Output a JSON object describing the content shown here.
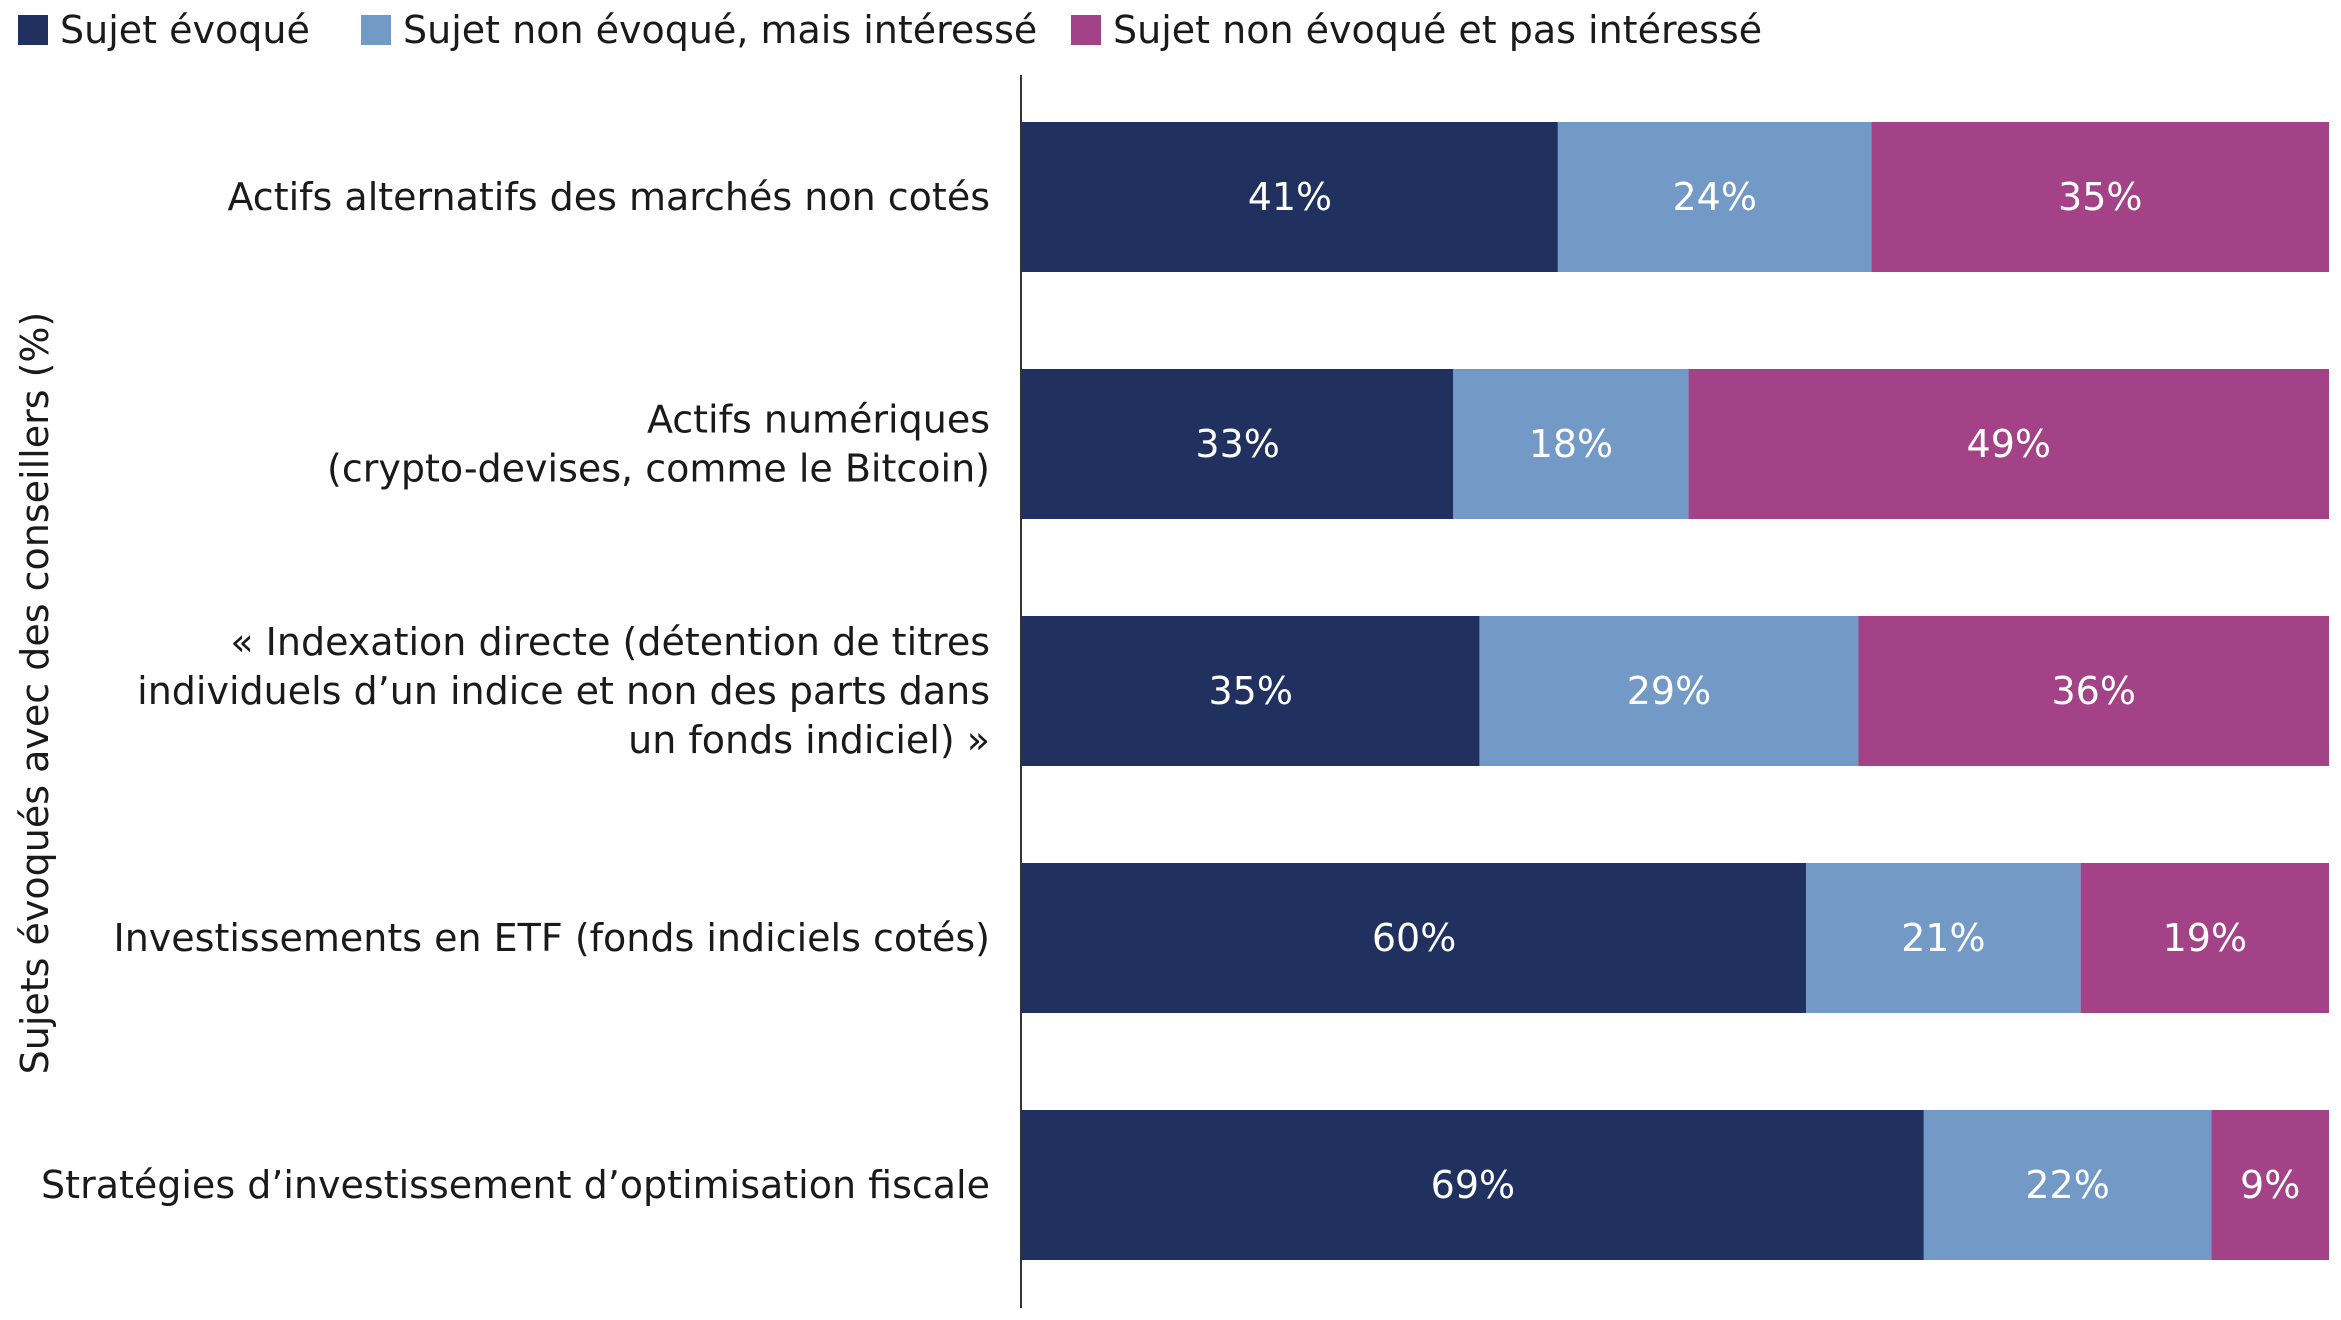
{
  "chart_data": {
    "type": "bar",
    "orientation": "horizontal",
    "stacked": true,
    "ylabel": "Sujets évoqués avec des conseillers (%)",
    "xlim": [
      0,
      100
    ],
    "legend_position": "top-left",
    "grid": false,
    "categories": [
      [
        "Actifs alternatifs des marchés non cotés"
      ],
      [
        "Actifs numériques",
        "(crypto-devises, comme le Bitcoin)"
      ],
      [
        "« Indexation directe (détention de titres",
        "individuels d’un indice et non des parts dans",
        "un fonds indiciel) »"
      ],
      [
        "Investissements en ETF (fonds indiciels cotés)"
      ],
      [
        "Stratégies d’investissement d’optimisation fiscale"
      ]
    ],
    "series": [
      {
        "name": "Sujet évoqué",
        "color": "#20305f",
        "values": [
          41,
          33,
          35,
          60,
          69
        ]
      },
      {
        "name": "Sujet non évoqué, mais intéressé",
        "color": "#7399c6",
        "values": [
          24,
          18,
          29,
          21,
          22
        ]
      },
      {
        "name": "Sujet non évoqué et pas intéressé",
        "color": "#a44287",
        "values": [
          35,
          49,
          36,
          19,
          9
        ]
      }
    ],
    "value_format": "{v}%"
  }
}
